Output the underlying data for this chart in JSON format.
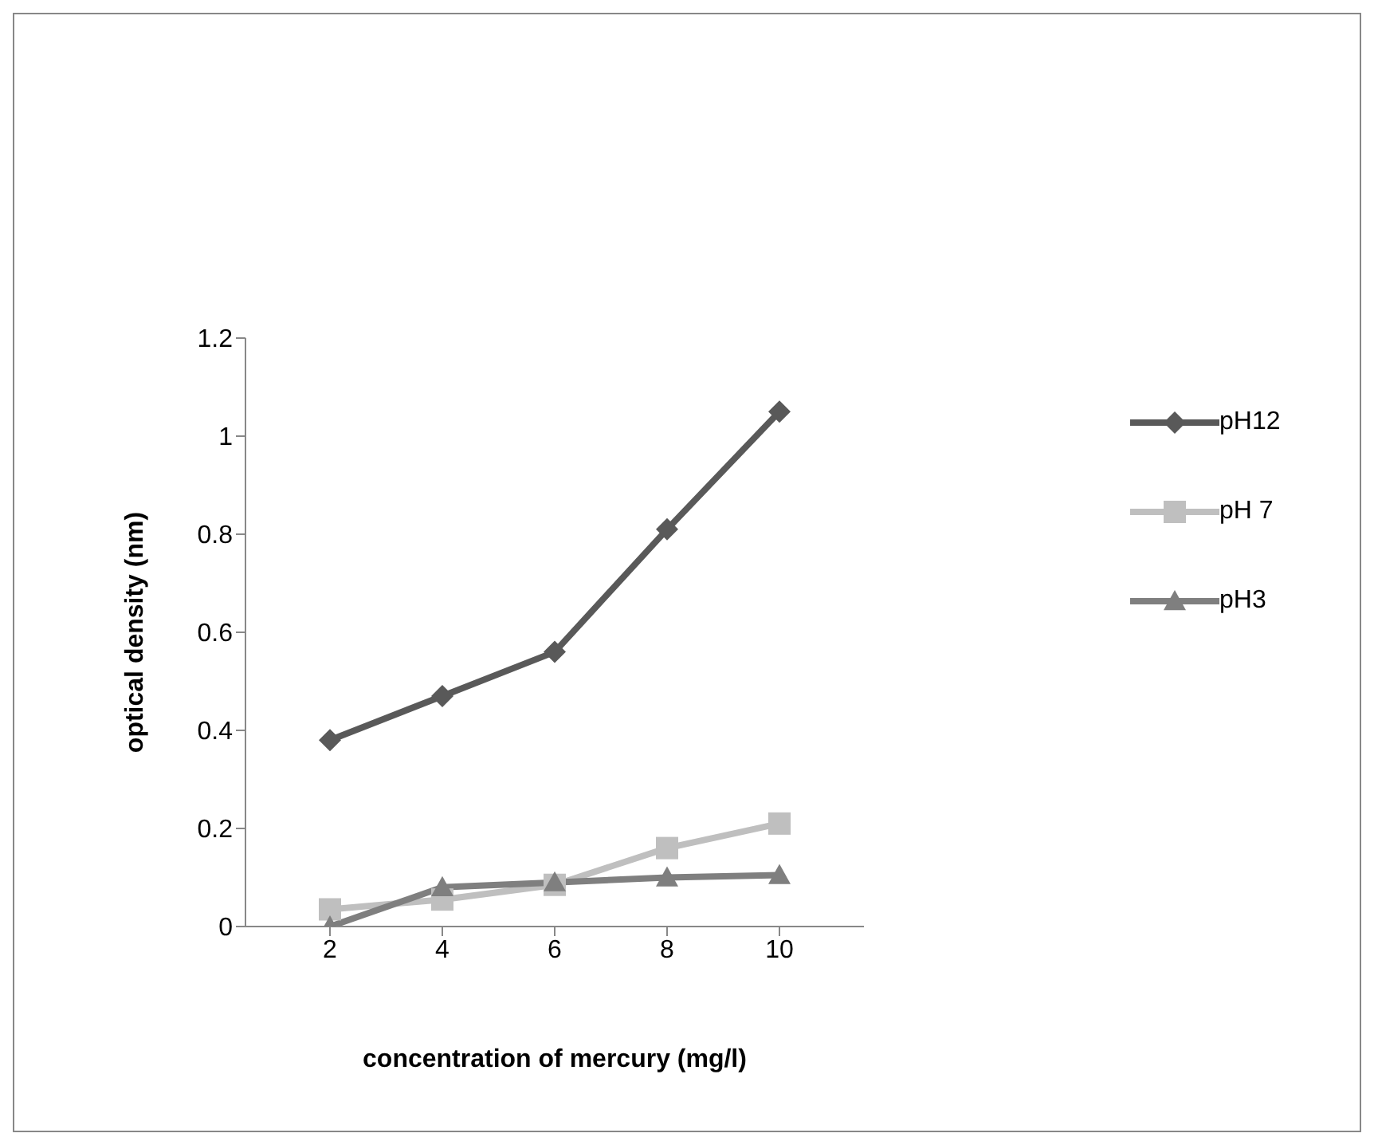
{
  "chart_data": {
    "type": "line",
    "xlabel": "concentration of mercury (mg/l)",
    "ylabel": "optical density (nm)",
    "categories": [
      "2",
      "4",
      "6",
      "8",
      "10"
    ],
    "series": [
      {
        "name": "pH12",
        "color": "#595959",
        "marker": "diamond",
        "values": [
          0.38,
          0.47,
          0.56,
          0.81,
          1.05
        ]
      },
      {
        "name": "pH 7",
        "color": "#bfbfbf",
        "marker": "square",
        "values": [
          0.035,
          0.055,
          0.085,
          0.16,
          0.21
        ]
      },
      {
        "name": "pH3",
        "color": "#7f7f7f",
        "marker": "triangle",
        "values": [
          0,
          0.08,
          0.09,
          0.1,
          0.105
        ]
      }
    ],
    "ylim": [
      0,
      1.2
    ],
    "yticks": [
      0,
      0.2,
      0.4,
      0.6,
      0.8,
      1,
      1.2
    ],
    "grid": false,
    "legend": "right"
  }
}
